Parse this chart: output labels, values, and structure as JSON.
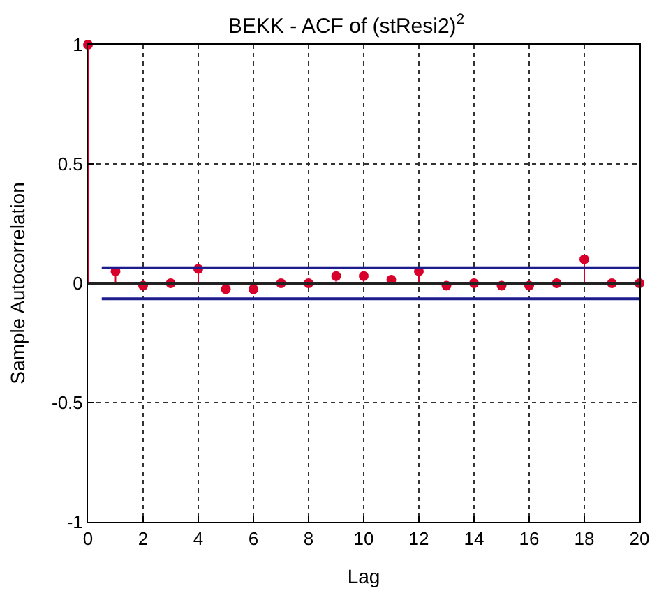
{
  "chart_data": {
    "type": "lollipop",
    "title": "BEKK - ACF of (stResi2)$^{2}$",
    "xlabel": "Lag",
    "ylabel": "Sample Autocorrelation",
    "x": [
      0,
      1,
      2,
      3,
      4,
      5,
      6,
      7,
      8,
      9,
      10,
      11,
      12,
      13,
      14,
      15,
      16,
      17,
      18,
      19,
      20
    ],
    "series": [
      {
        "color": "#d8002a",
        "values": [
          1,
          0.05,
          -0.01,
          0.0,
          0.06,
          -0.025,
          -0.025,
          0.0,
          0.0,
          0.03,
          0.03,
          0.015,
          0.05,
          -0.01,
          0.0,
          -0.01,
          -0.01,
          0.0,
          0.1,
          0.0,
          0.0
        ]
      }
    ],
    "xlim": [
      0,
      20
    ],
    "ylim": [
      -1,
      1
    ],
    "xticks": [
      0,
      2,
      4,
      6,
      8,
      10,
      12,
      14,
      16,
      18,
      20
    ],
    "yticks": [
      -1,
      -0.5,
      0,
      0.5,
      1
    ],
    "ref_lines": [
      {
        "axis": "y",
        "value": 0.065,
        "color": "#1c1c8c"
      },
      {
        "axis": "y",
        "value": -0.065,
        "color": "#1c1c8c"
      },
      {
        "axis": "y",
        "value": 0,
        "color": "#222222"
      }
    ],
    "grid": true,
    "marker": "circle"
  }
}
